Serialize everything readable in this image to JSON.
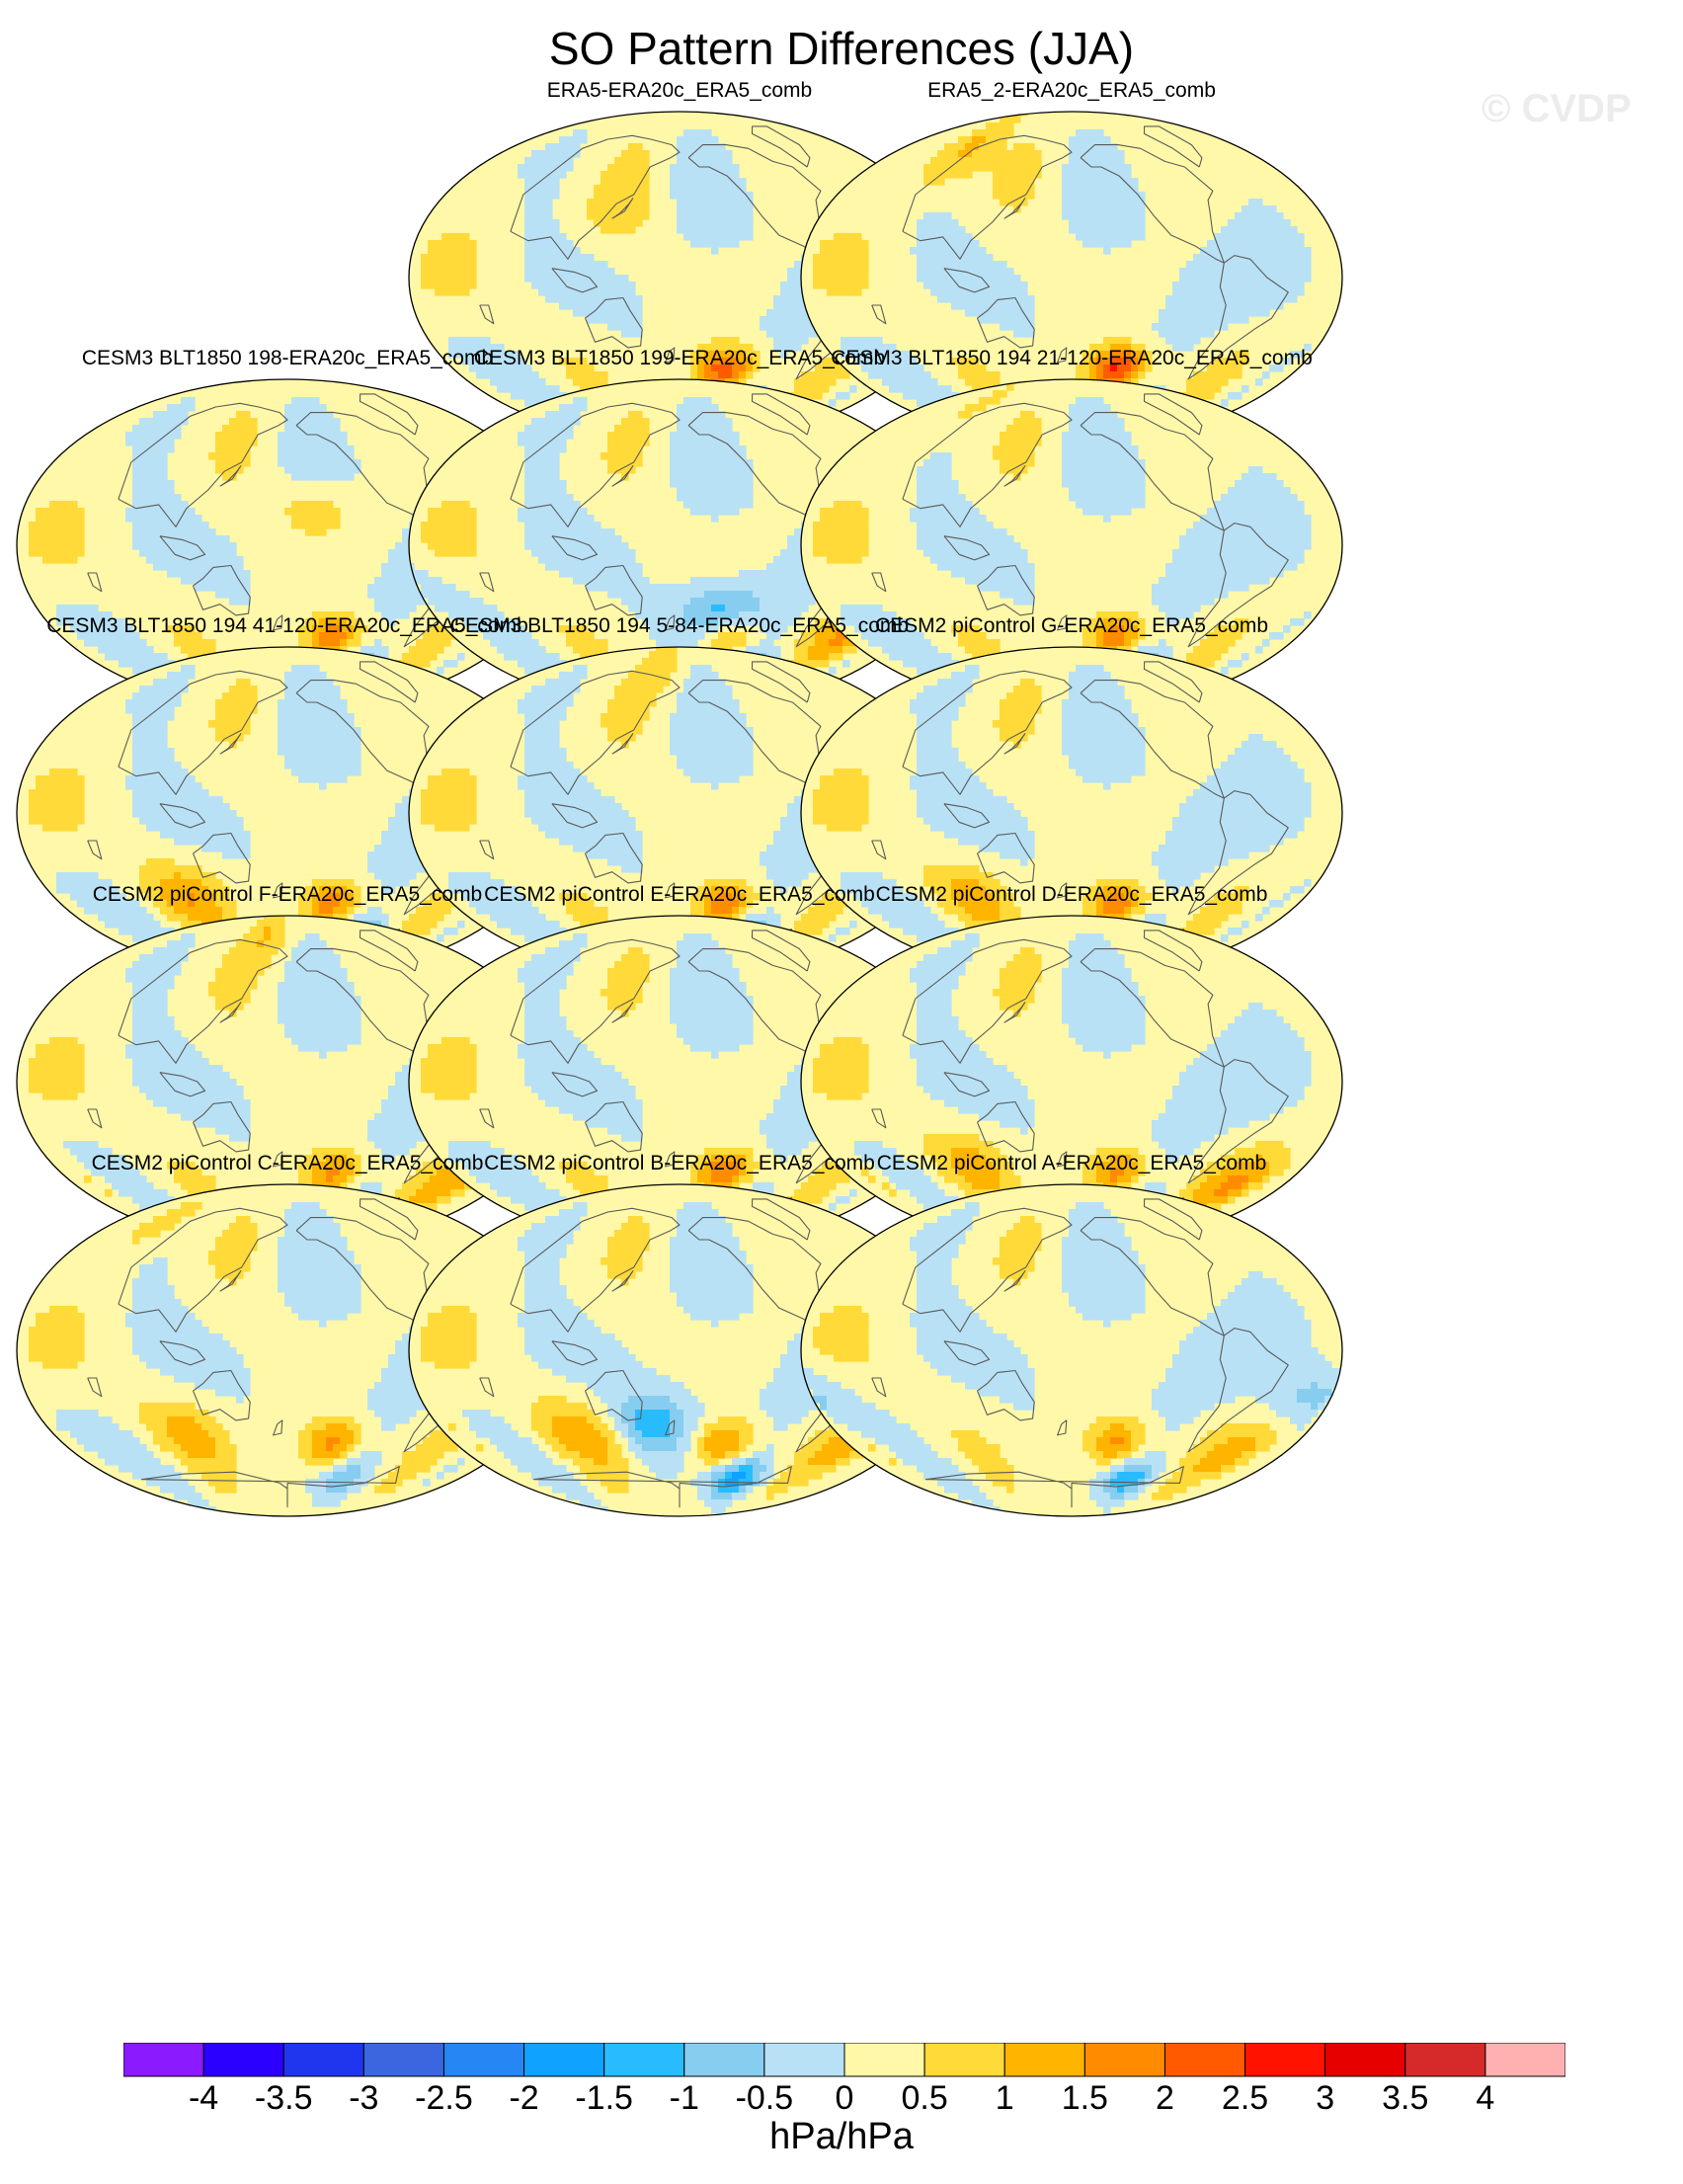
{
  "figure": {
    "title": "SO Pattern Differences (JJA)",
    "watermark": "© CVDP"
  },
  "panels": [
    {
      "title": "ERA5-ERA20c_ERA5_comb",
      "max": 2.3,
      "trough": 0.6,
      "features": [
        {
          "lon": 130,
          "lat": 35,
          "amp": 0.35
        }
      ]
    },
    {
      "title": "ERA5_2-ERA20c_ERA5_comb",
      "max": 2.6,
      "trough": 0.7,
      "features": [
        {
          "lon": 45,
          "lat": 75,
          "amp": 0.8
        },
        {
          "lon": 60,
          "lat": 60,
          "amp": 0.6
        }
      ]
    },
    {
      "title": "CESM3 BLT1850 198-ERA20c_ERA5_comb",
      "max": 1.9,
      "trough": 1.9,
      "features": [
        {
          "lon": -160,
          "lat": 20,
          "amp": 0.7
        }
      ]
    },
    {
      "title": "CESM3 BLT1850 199-ERA20c_ERA5_comb",
      "max": 2.0,
      "trough": 2.4,
      "features": [
        {
          "lon": -150,
          "lat": -40,
          "amp": -1.7
        },
        {
          "lon": -30,
          "lat": -45,
          "amp": 1.2
        },
        {
          "lon": -10,
          "lat": -25,
          "amp": -0.7
        }
      ]
    },
    {
      "title": "CESM3 BLT1850 194 21-120-ERA20c_ERA5_comb",
      "max": 1.8,
      "trough": 2.0,
      "features": [
        {
          "lon": 45,
          "lat": 75,
          "amp": 0.6
        }
      ]
    },
    {
      "title": "CESM3 BLT1850 194 41-120-ERA20c_ERA5_comb",
      "max": 1.8,
      "trough": 2.7,
      "features": [
        {
          "lon": 100,
          "lat": -45,
          "amp": 1.0
        }
      ]
    },
    {
      "title": "CESM3 BLT1850 194 5-84-ERA20c_ERA5_comb",
      "max": 1.9,
      "trough": 2.3,
      "features": [
        {
          "lon": 150,
          "lat": 82,
          "amp": 0.7
        }
      ]
    },
    {
      "title": "CESM2 piControl G-ERA20c_ERA5_comb",
      "max": 1.9,
      "trough": 1.3,
      "features": [
        {
          "lon": 100,
          "lat": -45,
          "amp": 0.8
        }
      ]
    },
    {
      "title": "CESM2 piControl F-ERA20c_ERA5_comb",
      "max": 1.7,
      "trough": 0.8,
      "features": [
        {
          "lon": 150,
          "lat": 82,
          "amp": 0.8
        },
        {
          "lon": -20,
          "lat": -55,
          "amp": 0.9
        }
      ]
    },
    {
      "title": "CESM2 piControl E-ERA20c_ERA5_comb",
      "max": 2.0,
      "trough": 1.2,
      "features": []
    },
    {
      "title": "CESM2 piControl D-ERA20c_ERA5_comb",
      "max": 1.7,
      "trough": 1.3,
      "features": [
        {
          "lon": 100,
          "lat": -45,
          "amp": 0.8
        },
        {
          "lon": -20,
          "lat": -55,
          "amp": 1.2
        }
      ]
    },
    {
      "title": "CESM2 piControl C-ERA20c_ERA5_comb",
      "max": 1.7,
      "trough": 0.8,
      "features": [
        {
          "lon": 30,
          "lat": 70,
          "amp": 0.8
        },
        {
          "lon": 100,
          "lat": -45,
          "amp": 0.8
        }
      ]
    },
    {
      "title": "CESM2 piControl B-ERA20c_ERA5_comb",
      "max": 1.6,
      "trough": 1.6,
      "features": [
        {
          "lon": 100,
          "lat": -45,
          "amp": 1.0
        },
        {
          "lon": 160,
          "lat": -40,
          "amp": -1.4
        },
        {
          "lon": -20,
          "lat": -50,
          "amp": 0.9
        }
      ]
    },
    {
      "title": "CESM2 piControl A-ERA20c_ERA5_comb",
      "max": 1.6,
      "trough": 1.3,
      "features": [
        {
          "lon": -20,
          "lat": -55,
          "amp": 0.9
        },
        {
          "lon": -10,
          "lat": -25,
          "amp": -0.8
        }
      ]
    }
  ],
  "colorbar": {
    "levels": [
      -4,
      -3.5,
      -3,
      -2.5,
      -2,
      -1.5,
      -1,
      -0.5,
      0,
      0.5,
      1,
      1.5,
      2,
      2.5,
      3,
      3.5,
      4
    ],
    "tick_labels": [
      "-4",
      "-3.5",
      "-3",
      "-2.5",
      "-2",
      "-1.5",
      "-1",
      "-0.5",
      "0",
      "0.5",
      "1",
      "1.5",
      "2",
      "2.5",
      "3",
      "3.5",
      "4"
    ],
    "colors": [
      "#8c1aff",
      "#2b00ff",
      "#1f35ee",
      "#3a67e0",
      "#2586f4",
      "#10a2ff",
      "#28bcff",
      "#86cdf0",
      "#b8e1f5",
      "#fff8a8",
      "#ffda38",
      "#ffb400",
      "#ff8c00",
      "#ff5a00",
      "#ff1200",
      "#e60000",
      "#d62a2a",
      "#ffb1b1"
    ],
    "units": "hPa/hPa"
  },
  "chart_data": {
    "type": "heatmap",
    "title": "SO Pattern Differences (JJA)",
    "projection": "Robinson, centered 180°",
    "variable": "SO pattern difference",
    "units": "hPa/hPa",
    "color_levels": [
      -4,
      -3.5,
      -3,
      -2.5,
      -2,
      -1.5,
      -1,
      -0.5,
      0,
      0.5,
      1,
      1.5,
      2,
      2.5,
      3,
      3.5,
      4
    ],
    "panels": [
      {
        "name": "ERA5-ERA20c_ERA5_comb",
        "positive_center": {
          "lon": -140,
          "lat": -50,
          "value": 2.3
        },
        "negative_center": {
          "lon": -110,
          "lat": -70,
          "value": -0.6
        }
      },
      {
        "name": "ERA5_2-ERA20c_ERA5_comb",
        "positive_center": {
          "lon": -140,
          "lat": -50,
          "value": 2.6
        },
        "negative_center": {
          "lon": -110,
          "lat": -70,
          "value": -0.7
        }
      },
      {
        "name": "CESM3 BLT1850 198-ERA20c_ERA5_comb",
        "positive_center": {
          "lon": -140,
          "lat": -50,
          "value": 1.9
        },
        "negative_center": {
          "lon": -110,
          "lat": -70,
          "value": -1.9
        }
      },
      {
        "name": "CESM3 BLT1850 199-ERA20c_ERA5_comb",
        "positive_center": {
          "lon": -140,
          "lat": -50,
          "value": 2.0
        },
        "negative_center": {
          "lon": -110,
          "lat": -70,
          "value": -2.4
        }
      },
      {
        "name": "CESM3 BLT1850 194 21-120-ERA20c_ERA5_comb",
        "positive_center": {
          "lon": -140,
          "lat": -50,
          "value": 1.8
        },
        "negative_center": {
          "lon": -110,
          "lat": -70,
          "value": -2.0
        }
      },
      {
        "name": "CESM3 BLT1850 194 41-120-ERA20c_ERA5_comb",
        "positive_center": {
          "lon": -140,
          "lat": -50,
          "value": 1.8
        },
        "negative_center": {
          "lon": -110,
          "lat": -70,
          "value": -2.7
        }
      },
      {
        "name": "CESM3 BLT1850 194 5-84-ERA20c_ERA5_comb",
        "positive_center": {
          "lon": -140,
          "lat": -50,
          "value": 1.9
        },
        "negative_center": {
          "lon": -110,
          "lat": -70,
          "value": -2.3
        }
      },
      {
        "name": "CESM2 piControl G-ERA20c_ERA5_comb",
        "positive_center": {
          "lon": -140,
          "lat": -50,
          "value": 1.9
        },
        "negative_center": {
          "lon": -110,
          "lat": -70,
          "value": -1.3
        }
      },
      {
        "name": "CESM2 piControl F-ERA20c_ERA5_comb",
        "positive_center": {
          "lon": -140,
          "lat": -50,
          "value": 1.7
        },
        "negative_center": {
          "lon": -110,
          "lat": -70,
          "value": -0.8
        }
      },
      {
        "name": "CESM2 piControl E-ERA20c_ERA5_comb",
        "positive_center": {
          "lon": -140,
          "lat": -50,
          "value": 2.0
        },
        "negative_center": {
          "lon": -110,
          "lat": -70,
          "value": -1.2
        }
      },
      {
        "name": "CESM2 piControl D-ERA20c_ERA5_comb",
        "positive_center": {
          "lon": -140,
          "lat": -50,
          "value": 1.7
        },
        "negative_center": {
          "lon": -110,
          "lat": -70,
          "value": -1.3
        }
      },
      {
        "name": "CESM2 piControl C-ERA20c_ERA5_comb",
        "positive_center": {
          "lon": -140,
          "lat": -50,
          "value": 1.7
        },
        "negative_center": {
          "lon": -110,
          "lat": -70,
          "value": -0.8
        }
      },
      {
        "name": "CESM2 piControl B-ERA20c_ERA5_comb",
        "positive_center": {
          "lon": -140,
          "lat": -50,
          "value": 1.6
        },
        "negative_center": {
          "lon": -110,
          "lat": -70,
          "value": -1.6
        }
      },
      {
        "name": "CESM2 piControl A-ERA20c_ERA5_comb",
        "positive_center": {
          "lon": -140,
          "lat": -50,
          "value": 1.6
        },
        "negative_center": {
          "lon": -110,
          "lat": -70,
          "value": -1.3
        }
      }
    ]
  }
}
